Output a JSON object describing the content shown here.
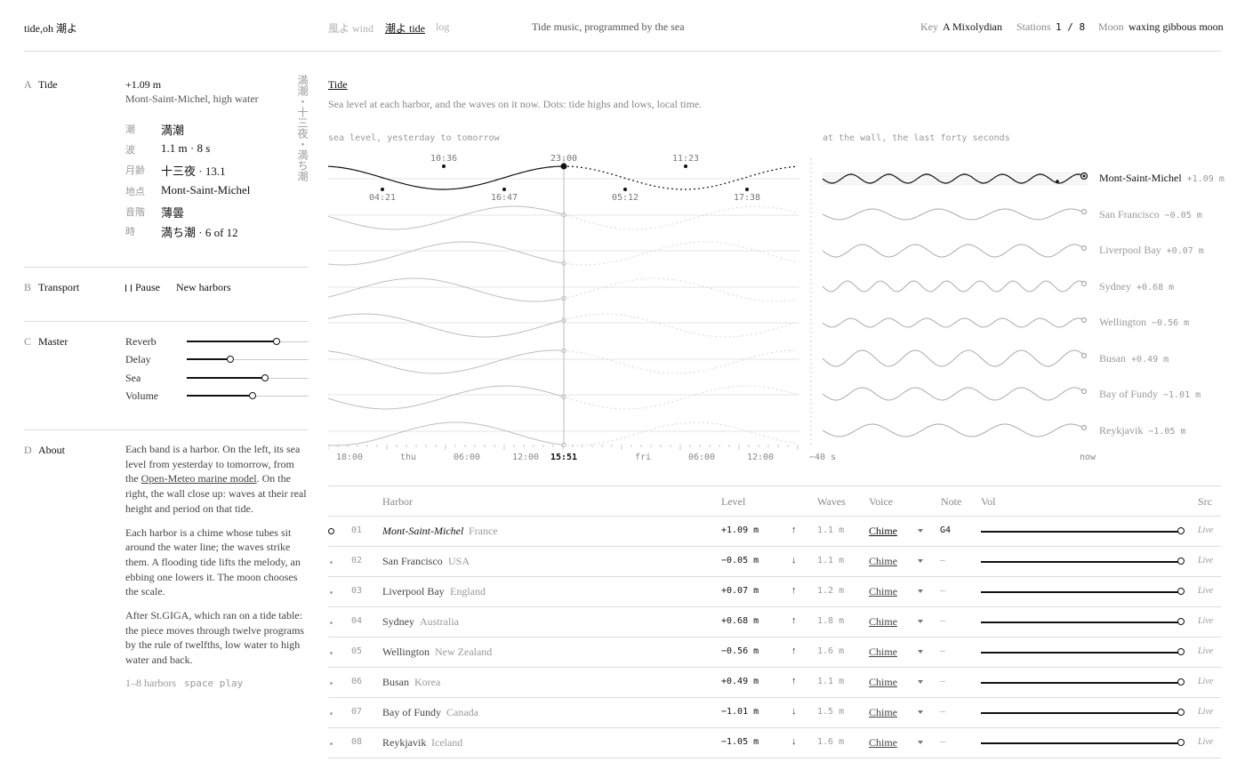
{
  "header": {
    "brand": "tide,oh 潮よ",
    "nav": [
      {
        "label": "風よ wind",
        "active": false
      },
      {
        "label": "潮よ tide",
        "active": true
      },
      {
        "label": "log",
        "active": false
      }
    ],
    "tagline": "Tide music, programmed by the sea",
    "key_label": "Key",
    "key_value": "A Mixolydian",
    "stations_label": "Stations",
    "stations_value": "1 / 8",
    "moon_label": "Moon",
    "moon_value": "waxing gibbous moon"
  },
  "sections": {
    "tide": {
      "letter": "A",
      "title": "Tide",
      "level": "+1.09 m",
      "subtitle": "Mont-Saint-Michel, high water",
      "vertical_text": "満潮・十三夜・満ち潮",
      "rows": [
        {
          "key": "潮",
          "value": "満潮"
        },
        {
          "key": "波",
          "value": "1.1 m · 8 s"
        },
        {
          "key": "月齢",
          "value": "十三夜 · 13.1"
        },
        {
          "key": "地点",
          "value": "Mont-Saint-Michel"
        },
        {
          "key": "音階",
          "value": "薄曇"
        },
        {
          "key": "時",
          "value": "満ち潮 · 6 of 12"
        }
      ]
    },
    "transport": {
      "letter": "B",
      "title": "Transport",
      "pause_icon": "pause-icon",
      "pause_label": "Pause",
      "new_label": "New harbors"
    },
    "master": {
      "letter": "C",
      "title": "Master",
      "sliders": [
        {
          "label": "Reverb",
          "value": 0.74
        },
        {
          "label": "Delay",
          "value": 0.36
        },
        {
          "label": "Sea",
          "value": 0.64
        },
        {
          "label": "Volume",
          "value": 0.54
        }
      ]
    },
    "about": {
      "letter": "D",
      "title": "About",
      "p1_a": "Each band is a harbor. On the left, its sea level from yesterday to tomorrow, from the ",
      "p1_link": "Open-Meteo marine model",
      "p1_b": ". On the right, the wall close up: waves at their real height and period on that tide.",
      "p2": "Each harbor is a chime whose tubes sit around the water line; the waves strike them. A flooding tide lifts the melody, an ebbing one lowers it. The moon chooses the scale.",
      "p3": "After St.GIGA, which ran on a tide table: the piece moves through twelve programs by the rule of twelfths, low water to high water and back.",
      "hint1": "1–8 harbors",
      "hint2": "space play"
    }
  },
  "main": {
    "title": "Tide",
    "description": "Sea level at each harbor, and the waves on it now. Dots: tide highs and lows, local time.",
    "left_caption": "sea level, yesterday to tomorrow",
    "right_caption": "at the wall, the last forty seconds",
    "peak_labels": [
      "10:36",
      "23:00",
      "11:23"
    ],
    "trough_labels": [
      "04:21",
      "16:47",
      "05:12",
      "17:38"
    ],
    "time_axis": [
      "18:00",
      "thu",
      "06:00",
      "12:00",
      "15:51",
      "fri",
      "06:00",
      "12:00"
    ],
    "wall_axis": [
      "−40 s",
      "now"
    ]
  },
  "table": {
    "headers": {
      "harbor": "Harbor",
      "level": "Level",
      "waves": "Waves",
      "voice": "Voice",
      "note": "Note",
      "vol": "Vol",
      "src": "Src"
    },
    "rows": [
      {
        "num": "01",
        "name": "Mont-Saint-Michel",
        "country": "France",
        "level": "+1.09 m",
        "trend": "↑",
        "waves": "1.1 m",
        "voice": "Chime",
        "note": "G4",
        "vol": 1.0,
        "src": "Live"
      },
      {
        "num": "02",
        "name": "San Francisco",
        "country": "USA",
        "level": "−0.05 m",
        "trend": "↓",
        "waves": "1.1 m",
        "voice": "Chime",
        "note": "–",
        "vol": 1.0,
        "src": "Live"
      },
      {
        "num": "03",
        "name": "Liverpool Bay",
        "country": "England",
        "level": "+0.07 m",
        "trend": "↑",
        "waves": "1.2 m",
        "voice": "Chime",
        "note": "–",
        "vol": 1.0,
        "src": "Live"
      },
      {
        "num": "04",
        "name": "Sydney",
        "country": "Australia",
        "level": "+0.68 m",
        "trend": "↑",
        "waves": "1.8 m",
        "voice": "Chime",
        "note": "–",
        "vol": 1.0,
        "src": "Live"
      },
      {
        "num": "05",
        "name": "Wellington",
        "country": "New Zealand",
        "level": "−0.56 m",
        "trend": "↑",
        "waves": "1.6 m",
        "voice": "Chime",
        "note": "–",
        "vol": 1.0,
        "src": "Live"
      },
      {
        "num": "06",
        "name": "Busan",
        "country": "Korea",
        "level": "+0.49 m",
        "trend": "↑",
        "waves": "1.1 m",
        "voice": "Chime",
        "note": "–",
        "vol": 1.0,
        "src": "Live"
      },
      {
        "num": "07",
        "name": "Bay of Fundy",
        "country": "Canada",
        "level": "−1.01 m",
        "trend": "↓",
        "waves": "1.5 m",
        "voice": "Chime",
        "note": "–",
        "vol": 1.0,
        "src": "Live"
      },
      {
        "num": "08",
        "name": "Reykjavik",
        "country": "Iceland",
        "level": "−1.05 m",
        "trend": "↓",
        "waves": "1.6 m",
        "voice": "Chime",
        "note": "–",
        "vol": 1.0,
        "src": "Live"
      }
    ]
  }
}
